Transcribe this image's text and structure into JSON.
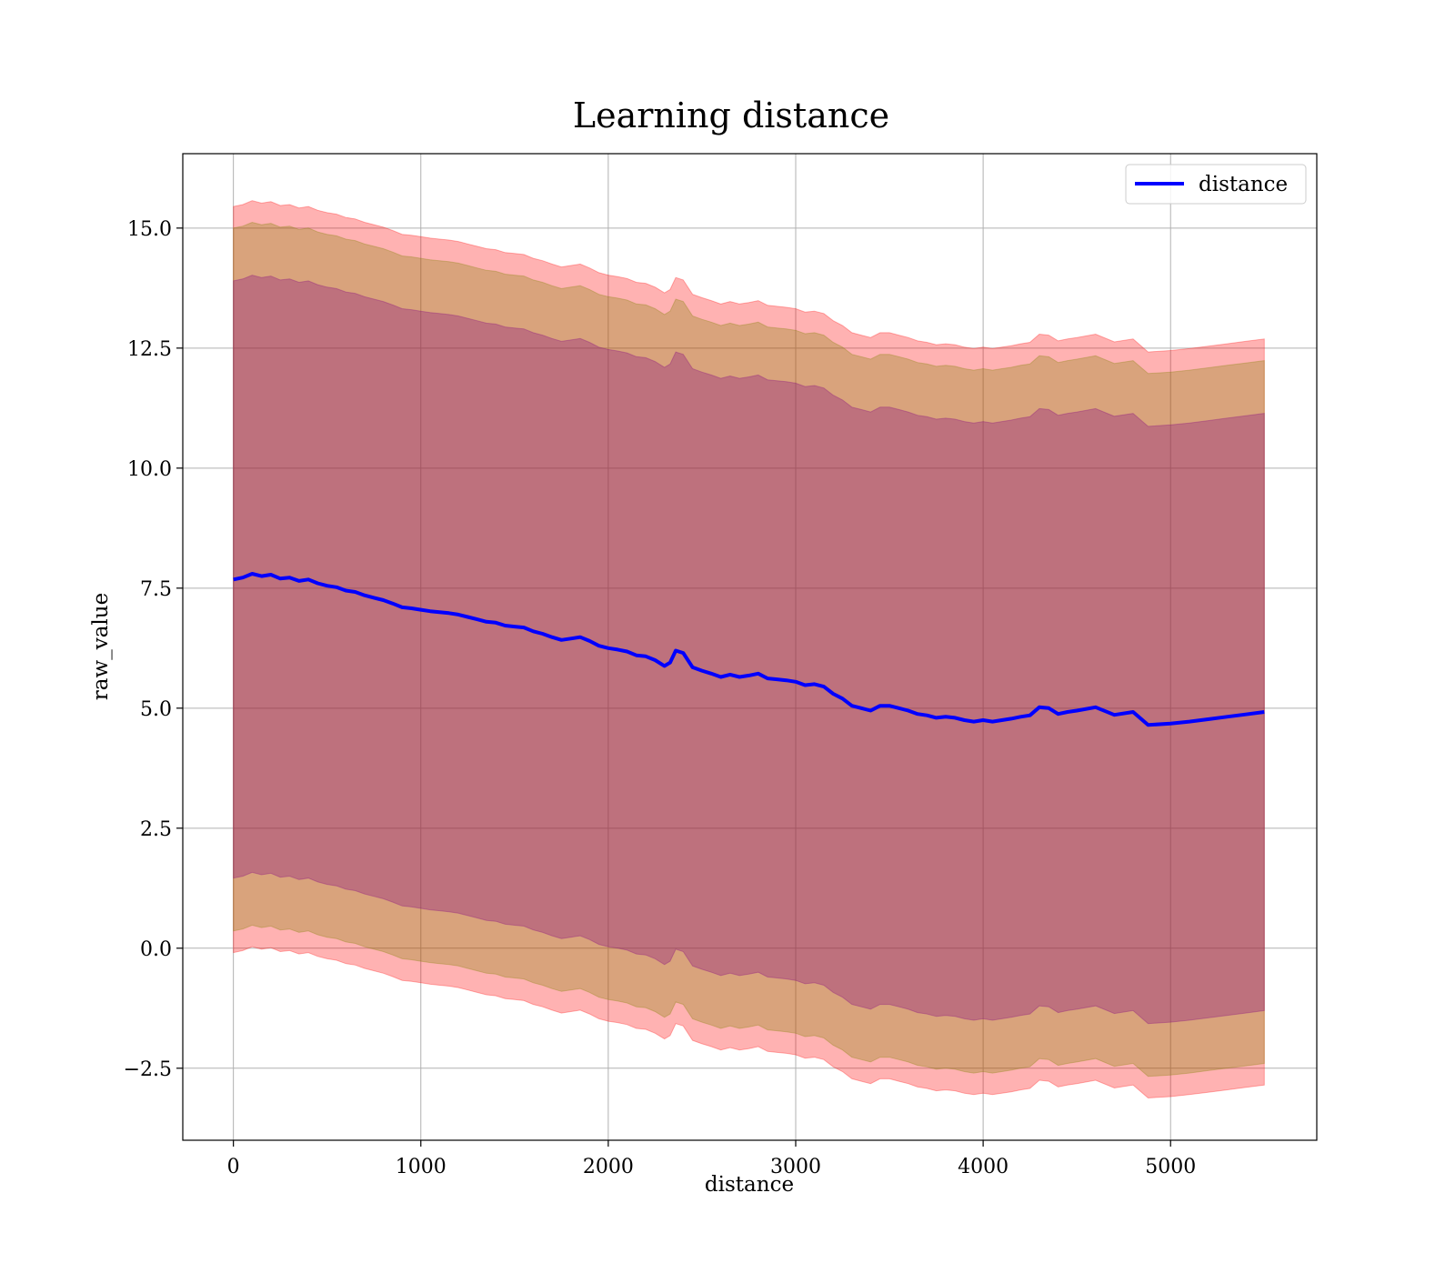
{
  "chart_data": {
    "type": "line",
    "title": "Learning distance",
    "xlabel": "distance",
    "ylabel": "raw_value",
    "xlim": [
      -270,
      5780
    ],
    "ylim": [
      -4.0,
      16.55
    ],
    "x_ticks": [
      0,
      1000,
      2000,
      3000,
      4000,
      5000
    ],
    "y_ticks": [
      -2.5,
      0.0,
      2.5,
      5.0,
      7.5,
      10.0,
      12.5,
      15.0
    ],
    "x_tick_labels": [
      "0",
      "1000",
      "2000",
      "3000",
      "4000",
      "5000"
    ],
    "y_tick_labels": [
      "−2.5",
      "0.0",
      "2.5",
      "5.0",
      "7.5",
      "10.0",
      "12.5",
      "15.0"
    ],
    "grid": true,
    "legend": {
      "placement": "top-right",
      "entries": [
        {
          "name": "distance",
          "color": "#0000ff"
        }
      ]
    },
    "series": [
      {
        "name": "distance",
        "color": "#0000ff",
        "x": [
          0,
          50,
          100,
          150,
          200,
          250,
          300,
          350,
          400,
          450,
          500,
          550,
          600,
          650,
          700,
          750,
          800,
          850,
          900,
          950,
          1000,
          1050,
          1100,
          1150,
          1200,
          1250,
          1300,
          1350,
          1400,
          1450,
          1500,
          1550,
          1600,
          1650,
          1700,
          1750,
          1800,
          1850,
          1900,
          1950,
          2000,
          2050,
          2100,
          2150,
          2200,
          2250,
          2300,
          2330,
          2360,
          2400,
          2450,
          2500,
          2550,
          2600,
          2650,
          2700,
          2750,
          2800,
          2850,
          2900,
          2950,
          3000,
          3050,
          3100,
          3150,
          3200,
          3250,
          3300,
          3350,
          3400,
          3450,
          3500,
          3550,
          3600,
          3650,
          3700,
          3750,
          3800,
          3850,
          3900,
          3950,
          4000,
          4050,
          4100,
          4150,
          4200,
          4250,
          4300,
          4350,
          4400,
          4450,
          4500,
          4600,
          4700,
          4800,
          4880,
          5000,
          5100,
          5200,
          5300,
          5400,
          5500
        ],
        "y": [
          7.68,
          7.72,
          7.8,
          7.75,
          7.78,
          7.7,
          7.72,
          7.65,
          7.68,
          7.6,
          7.55,
          7.52,
          7.45,
          7.42,
          7.35,
          7.3,
          7.25,
          7.18,
          7.1,
          7.08,
          7.05,
          7.02,
          7.0,
          6.98,
          6.95,
          6.9,
          6.85,
          6.8,
          6.78,
          6.72,
          6.7,
          6.68,
          6.6,
          6.55,
          6.48,
          6.42,
          6.45,
          6.48,
          6.4,
          6.3,
          6.25,
          6.22,
          6.18,
          6.1,
          6.08,
          6.0,
          5.88,
          5.95,
          6.2,
          6.15,
          5.85,
          5.78,
          5.72,
          5.65,
          5.7,
          5.65,
          5.68,
          5.72,
          5.62,
          5.6,
          5.58,
          5.55,
          5.48,
          5.5,
          5.45,
          5.3,
          5.2,
          5.05,
          5.0,
          4.95,
          5.05,
          5.05,
          5.0,
          4.95,
          4.88,
          4.85,
          4.8,
          4.82,
          4.8,
          4.75,
          4.72,
          4.75,
          4.72,
          4.75,
          4.78,
          4.82,
          4.85,
          5.02,
          5.0,
          4.88,
          4.92,
          4.95,
          5.02,
          4.86,
          4.92,
          4.65,
          4.68,
          4.72,
          4.77,
          4.82,
          4.87,
          4.92
        ]
      }
    ],
    "bands": [
      {
        "color": "#ff0000",
        "opacity": 0.3,
        "x": [
          0,
          50,
          100,
          150,
          200,
          250,
          300,
          350,
          400,
          450,
          500,
          550,
          600,
          650,
          700,
          750,
          800,
          850,
          900,
          950,
          1000,
          1050,
          1100,
          1150,
          1200,
          1250,
          1300,
          1350,
          1400,
          1450,
          1500,
          1550,
          1600,
          1650,
          1700,
          1750,
          1800,
          1850,
          1900,
          1950,
          2000,
          2050,
          2100,
          2150,
          2200,
          2250,
          2300,
          2330,
          2360,
          2400,
          2450,
          2500,
          2550,
          2600,
          2650,
          2700,
          2750,
          2800,
          2850,
          2900,
          2950,
          3000,
          3050,
          3100,
          3150,
          3200,
          3250,
          3300,
          3350,
          3400,
          3450,
          3500,
          3550,
          3600,
          3650,
          3700,
          3750,
          3800,
          3850,
          3900,
          3950,
          4000,
          4050,
          4100,
          4150,
          4200,
          4250,
          4300,
          4350,
          4400,
          4450,
          4500,
          4600,
          4700,
          4800,
          4880,
          5000,
          5100,
          5200,
          5300,
          5400,
          5500
        ],
        "upper": [
          15.45,
          15.49,
          15.57,
          15.52,
          15.55,
          15.47,
          15.49,
          15.42,
          15.45,
          15.37,
          15.32,
          15.29,
          15.22,
          15.19,
          15.12,
          15.07,
          15.02,
          14.95,
          14.87,
          14.85,
          14.82,
          14.79,
          14.77,
          14.75,
          14.72,
          14.67,
          14.62,
          14.57,
          14.55,
          14.49,
          14.47,
          14.45,
          14.37,
          14.32,
          14.25,
          14.19,
          14.22,
          14.25,
          14.17,
          14.07,
          14.02,
          13.99,
          13.95,
          13.87,
          13.85,
          13.77,
          13.65,
          13.72,
          13.97,
          13.92,
          13.62,
          13.55,
          13.49,
          13.42,
          13.47,
          13.42,
          13.45,
          13.49,
          13.39,
          13.37,
          13.35,
          13.32,
          13.25,
          13.27,
          13.22,
          13.07,
          12.97,
          12.82,
          12.77,
          12.72,
          12.82,
          12.82,
          12.77,
          12.72,
          12.65,
          12.62,
          12.57,
          12.59,
          12.57,
          12.52,
          12.49,
          12.52,
          12.49,
          12.52,
          12.55,
          12.59,
          12.62,
          12.79,
          12.77,
          12.65,
          12.69,
          12.72,
          12.79,
          12.63,
          12.69,
          12.42,
          12.45,
          12.49,
          12.54,
          12.59,
          12.64,
          12.69
        ],
        "lower": [
          -0.09,
          -0.05,
          0.03,
          -0.02,
          0.01,
          -0.07,
          -0.05,
          -0.12,
          -0.09,
          -0.17,
          -0.22,
          -0.25,
          -0.32,
          -0.35,
          -0.42,
          -0.47,
          -0.52,
          -0.59,
          -0.67,
          -0.69,
          -0.72,
          -0.75,
          -0.77,
          -0.79,
          -0.82,
          -0.87,
          -0.92,
          -0.97,
          -0.99,
          -1.05,
          -1.07,
          -1.09,
          -1.17,
          -1.22,
          -1.29,
          -1.35,
          -1.32,
          -1.29,
          -1.37,
          -1.47,
          -1.52,
          -1.55,
          -1.59,
          -1.67,
          -1.69,
          -1.77,
          -1.89,
          -1.82,
          -1.57,
          -1.62,
          -1.92,
          -1.99,
          -2.05,
          -2.12,
          -2.07,
          -2.12,
          -2.09,
          -2.05,
          -2.15,
          -2.17,
          -2.19,
          -2.22,
          -2.29,
          -2.27,
          -2.32,
          -2.47,
          -2.57,
          -2.72,
          -2.77,
          -2.82,
          -2.72,
          -2.72,
          -2.77,
          -2.82,
          -2.89,
          -2.92,
          -2.97,
          -2.95,
          -2.97,
          -3.02,
          -3.05,
          -3.02,
          -3.05,
          -3.02,
          -2.99,
          -2.95,
          -2.92,
          -2.75,
          -2.77,
          -2.89,
          -2.85,
          -2.82,
          -2.75,
          -2.91,
          -2.85,
          -3.12,
          -3.09,
          -3.05,
          -3.0,
          -2.95,
          -2.9,
          -2.85
        ]
      },
      {
        "color": "#808000",
        "opacity": 0.3,
        "x": [
          0,
          50,
          100,
          150,
          200,
          250,
          300,
          350,
          400,
          450,
          500,
          550,
          600,
          650,
          700,
          750,
          800,
          850,
          900,
          950,
          1000,
          1050,
          1100,
          1150,
          1200,
          1250,
          1300,
          1350,
          1400,
          1450,
          1500,
          1550,
          1600,
          1650,
          1700,
          1750,
          1800,
          1850,
          1900,
          1950,
          2000,
          2050,
          2100,
          2150,
          2200,
          2250,
          2300,
          2330,
          2360,
          2400,
          2450,
          2500,
          2550,
          2600,
          2650,
          2700,
          2750,
          2800,
          2850,
          2900,
          2950,
          3000,
          3050,
          3100,
          3150,
          3200,
          3250,
          3300,
          3350,
          3400,
          3450,
          3500,
          3550,
          3600,
          3650,
          3700,
          3750,
          3800,
          3850,
          3900,
          3950,
          4000,
          4050,
          4100,
          4150,
          4200,
          4250,
          4300,
          4350,
          4400,
          4450,
          4500,
          4600,
          4700,
          4800,
          4880,
          5000,
          5100,
          5200,
          5300,
          5400,
          5500
        ],
        "upper": [
          15.0,
          15.04,
          15.12,
          15.07,
          15.1,
          15.02,
          15.04,
          14.97,
          15.0,
          14.92,
          14.87,
          14.84,
          14.77,
          14.74,
          14.67,
          14.62,
          14.57,
          14.5,
          14.42,
          14.4,
          14.37,
          14.34,
          14.32,
          14.3,
          14.27,
          14.22,
          14.17,
          14.12,
          14.1,
          14.04,
          14.02,
          14.0,
          13.92,
          13.87,
          13.8,
          13.74,
          13.77,
          13.8,
          13.72,
          13.62,
          13.57,
          13.54,
          13.5,
          13.42,
          13.4,
          13.32,
          13.2,
          13.27,
          13.52,
          13.47,
          13.17,
          13.1,
          13.04,
          12.97,
          13.02,
          12.97,
          13.0,
          13.04,
          12.94,
          12.92,
          12.9,
          12.87,
          12.8,
          12.82,
          12.77,
          12.62,
          12.52,
          12.37,
          12.32,
          12.27,
          12.37,
          12.37,
          12.32,
          12.27,
          12.2,
          12.17,
          12.12,
          12.14,
          12.12,
          12.07,
          12.04,
          12.07,
          12.04,
          12.07,
          12.1,
          12.14,
          12.17,
          12.34,
          12.32,
          12.2,
          12.24,
          12.27,
          12.34,
          12.18,
          12.24,
          11.97,
          12.0,
          12.04,
          12.09,
          12.14,
          12.19,
          12.24
        ],
        "lower": [
          0.36,
          0.4,
          0.48,
          0.43,
          0.46,
          0.38,
          0.4,
          0.33,
          0.36,
          0.28,
          0.23,
          0.2,
          0.13,
          0.1,
          0.03,
          -0.02,
          -0.07,
          -0.14,
          -0.22,
          -0.24,
          -0.27,
          -0.3,
          -0.32,
          -0.34,
          -0.37,
          -0.42,
          -0.47,
          -0.52,
          -0.54,
          -0.6,
          -0.62,
          -0.64,
          -0.72,
          -0.77,
          -0.84,
          -0.9,
          -0.87,
          -0.84,
          -0.92,
          -1.02,
          -1.07,
          -1.1,
          -1.14,
          -1.22,
          -1.24,
          -1.32,
          -1.44,
          -1.37,
          -1.12,
          -1.17,
          -1.47,
          -1.54,
          -1.6,
          -1.67,
          -1.62,
          -1.67,
          -1.64,
          -1.6,
          -1.7,
          -1.72,
          -1.74,
          -1.77,
          -1.84,
          -1.82,
          -1.87,
          -2.02,
          -2.12,
          -2.27,
          -2.32,
          -2.37,
          -2.27,
          -2.27,
          -2.32,
          -2.37,
          -2.44,
          -2.47,
          -2.52,
          -2.5,
          -2.52,
          -2.57,
          -2.6,
          -2.57,
          -2.6,
          -2.57,
          -2.54,
          -2.5,
          -2.47,
          -2.3,
          -2.32,
          -2.44,
          -2.4,
          -2.37,
          -2.3,
          -2.46,
          -2.4,
          -2.67,
          -2.64,
          -2.6,
          -2.55,
          -2.5,
          -2.45,
          -2.4
        ]
      },
      {
        "color": "#800080",
        "opacity": 0.3,
        "x": [
          0,
          50,
          100,
          150,
          200,
          250,
          300,
          350,
          400,
          450,
          500,
          550,
          600,
          650,
          700,
          750,
          800,
          850,
          900,
          950,
          1000,
          1050,
          1100,
          1150,
          1200,
          1250,
          1300,
          1350,
          1400,
          1450,
          1500,
          1550,
          1600,
          1650,
          1700,
          1750,
          1800,
          1850,
          1900,
          1950,
          2000,
          2050,
          2100,
          2150,
          2200,
          2250,
          2300,
          2330,
          2360,
          2400,
          2450,
          2500,
          2550,
          2600,
          2650,
          2700,
          2750,
          2800,
          2850,
          2900,
          2950,
          3000,
          3050,
          3100,
          3150,
          3200,
          3250,
          3300,
          3350,
          3400,
          3450,
          3500,
          3550,
          3600,
          3650,
          3700,
          3750,
          3800,
          3850,
          3900,
          3950,
          4000,
          4050,
          4100,
          4150,
          4200,
          4250,
          4300,
          4350,
          4400,
          4450,
          4500,
          4600,
          4700,
          4800,
          4880,
          5000,
          5100,
          5200,
          5300,
          5400,
          5500
        ],
        "upper": [
          13.9,
          13.94,
          14.02,
          13.97,
          14.0,
          13.92,
          13.94,
          13.87,
          13.9,
          13.82,
          13.77,
          13.74,
          13.67,
          13.64,
          13.57,
          13.52,
          13.47,
          13.4,
          13.32,
          13.3,
          13.27,
          13.24,
          13.22,
          13.2,
          13.17,
          13.12,
          13.07,
          13.02,
          13.0,
          12.94,
          12.92,
          12.9,
          12.82,
          12.77,
          12.7,
          12.64,
          12.67,
          12.7,
          12.62,
          12.52,
          12.47,
          12.44,
          12.4,
          12.32,
          12.3,
          12.22,
          12.1,
          12.17,
          12.42,
          12.37,
          12.07,
          12.0,
          11.94,
          11.87,
          11.92,
          11.87,
          11.9,
          11.94,
          11.84,
          11.82,
          11.8,
          11.77,
          11.7,
          11.72,
          11.67,
          11.52,
          11.42,
          11.27,
          11.22,
          11.17,
          11.27,
          11.27,
          11.22,
          11.17,
          11.1,
          11.07,
          11.02,
          11.04,
          11.02,
          10.97,
          10.94,
          10.97,
          10.94,
          10.97,
          11.0,
          11.04,
          11.07,
          11.24,
          11.22,
          11.1,
          11.14,
          11.17,
          11.24,
          11.08,
          11.14,
          10.87,
          10.9,
          10.94,
          10.99,
          11.04,
          11.09,
          11.14
        ],
        "lower": [
          1.46,
          1.5,
          1.58,
          1.53,
          1.56,
          1.48,
          1.5,
          1.43,
          1.46,
          1.38,
          1.33,
          1.3,
          1.23,
          1.2,
          1.13,
          1.08,
          1.03,
          0.96,
          0.88,
          0.86,
          0.83,
          0.8,
          0.78,
          0.76,
          0.73,
          0.68,
          0.63,
          0.58,
          0.56,
          0.5,
          0.48,
          0.46,
          0.38,
          0.33,
          0.26,
          0.2,
          0.23,
          0.26,
          0.18,
          0.08,
          0.03,
          0.0,
          -0.04,
          -0.12,
          -0.14,
          -0.22,
          -0.34,
          -0.27,
          -0.02,
          -0.07,
          -0.37,
          -0.44,
          -0.5,
          -0.57,
          -0.52,
          -0.57,
          -0.54,
          -0.5,
          -0.6,
          -0.62,
          -0.64,
          -0.67,
          -0.74,
          -0.72,
          -0.77,
          -0.92,
          -1.02,
          -1.17,
          -1.22,
          -1.27,
          -1.17,
          -1.17,
          -1.22,
          -1.27,
          -1.34,
          -1.37,
          -1.42,
          -1.4,
          -1.42,
          -1.47,
          -1.5,
          -1.47,
          -1.5,
          -1.47,
          -1.44,
          -1.4,
          -1.37,
          -1.2,
          -1.22,
          -1.34,
          -1.3,
          -1.27,
          -1.2,
          -1.36,
          -1.3,
          -1.57,
          -1.54,
          -1.5,
          -1.45,
          -1.4,
          -1.35,
          -1.3
        ]
      }
    ]
  }
}
